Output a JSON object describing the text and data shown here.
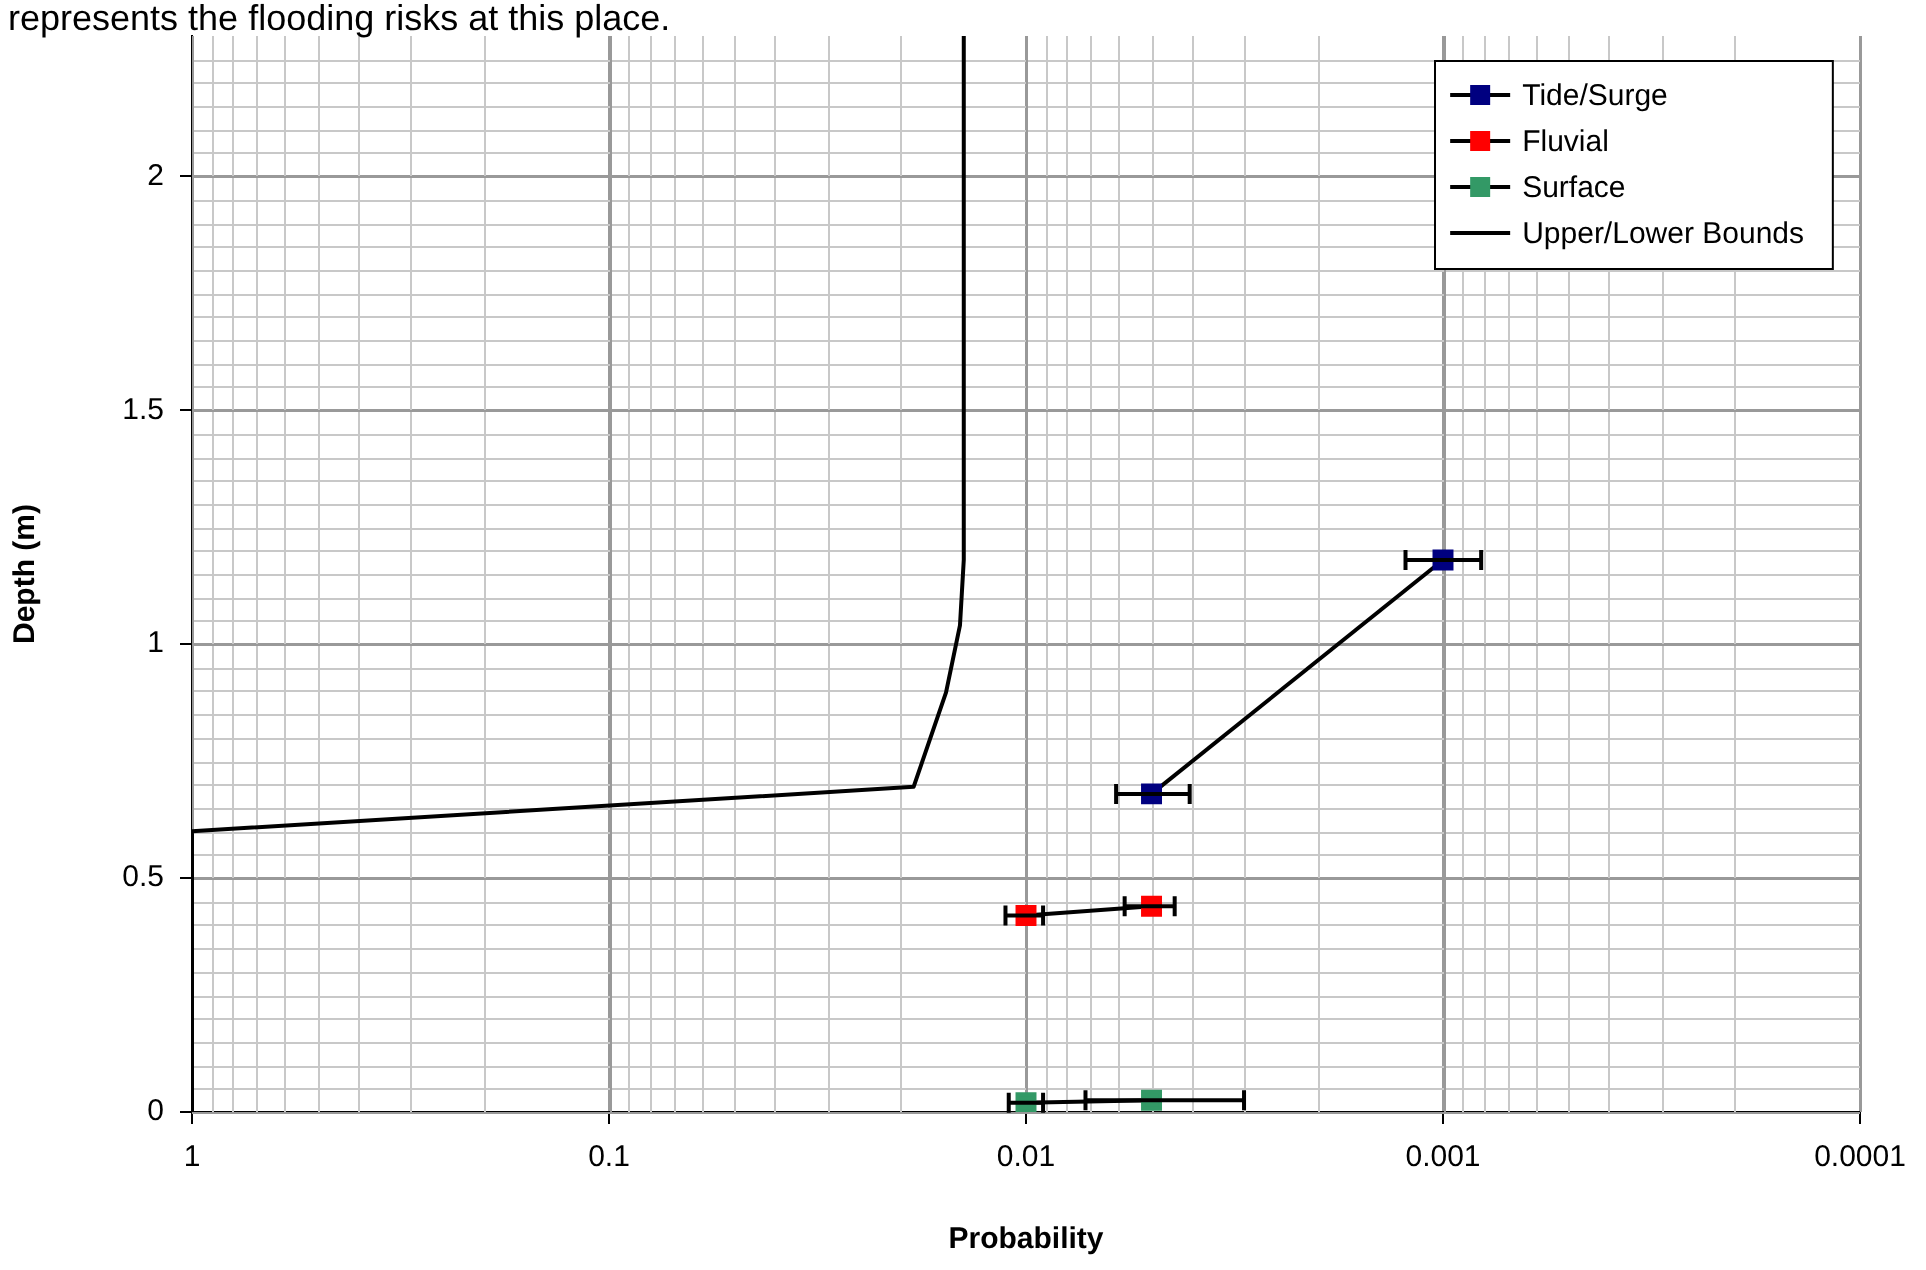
{
  "chart_data": {
    "type": "line",
    "annotations": [
      "represents the flooding risks at this place."
    ],
    "xlabel": "Probability",
    "ylabel": "Depth (m)",
    "log": "x",
    "xlim": [
      1,
      0.0001
    ],
    "xticks": [
      1,
      0.1,
      0.01,
      0.001,
      0.0001
    ],
    "ylim": [
      0,
      2.3
    ],
    "yticks": [
      0,
      0.5,
      1,
      1.5,
      2
    ],
    "grid": true,
    "legend": "top right",
    "marker": "square",
    "series": [
      {
        "name": "Tide/Surge",
        "color": "#000080",
        "x": [
          0.005,
          0.001
        ],
        "values": [
          0.68,
          1.18
        ],
        "xerrors": [
          [
            0.00405,
            0.00608
          ],
          [
            0.00081,
            0.00123
          ]
        ]
      },
      {
        "name": "Fluvial",
        "color": "#ff0000",
        "x": [
          0.01,
          0.005
        ],
        "values": [
          0.42,
          0.44
        ],
        "xerrors": [
          [
            0.0091,
            0.0112
          ],
          [
            0.0044,
            0.0058
          ]
        ]
      },
      {
        "name": "Surface",
        "color": "#339966",
        "x": [
          0.01,
          0.005
        ],
        "values": [
          0.02,
          0.025
        ],
        "xerrors": [
          [
            0.0091,
            0.011
          ],
          [
            0.003,
            0.0072
          ]
        ]
      },
      {
        "name": "Upper/Lower Bounds",
        "color": "#000000",
        "marker": "none",
        "x": [
          1,
          1,
          0.0186,
          0.01555,
          0.0144,
          0.0141,
          0.0141
        ],
        "values": [
          0,
          0.6,
          0.695,
          0.897,
          1.04,
          1.18,
          2.3
        ]
      }
    ]
  }
}
